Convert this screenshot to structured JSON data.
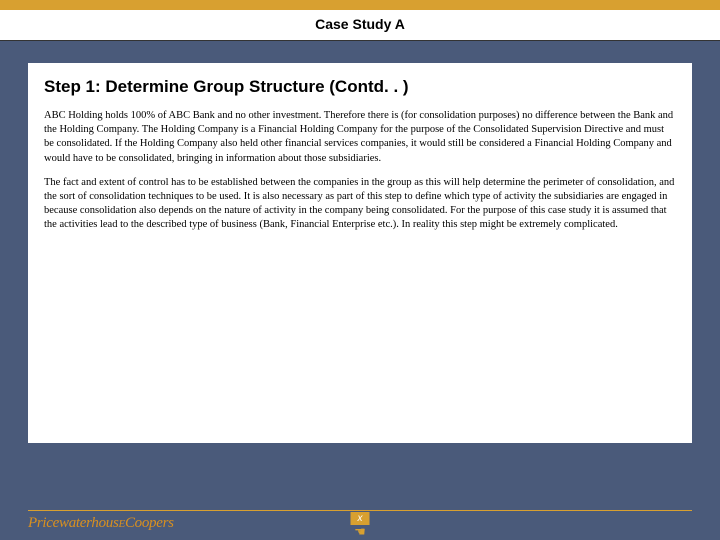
{
  "colors": {
    "slide_bg": "#4a5a7a",
    "accent": "#d8a030",
    "card_bg": "#ffffff",
    "text": "#000000",
    "logo": "#d89020"
  },
  "header": {
    "title": "Case Study A"
  },
  "content": {
    "step_heading": "Step 1: Determine Group Structure (Contd. . )",
    "paragraphs": [
      "ABC Holding holds 100% of ABC Bank and no other investment. Therefore there is (for consolidation purposes) no difference between the Bank and the Holding Company. The Holding Company is a Financial Holding Company for the purpose of the Consolidated Supervision Directive and must be consolidated. If the Holding Company also held other financial services companies, it would still be considered a Financial Holding Company and would have to be consolidated, bringing in information about those subsidiaries.",
      "The fact and extent of control has to be established between the companies in the group as this will help determine the perimeter of consolidation, and the sort of consolidation techniques to be used. It is also necessary as part of this step to define which type of activity the subsidiaries are engaged in because consolidation also depends on the nature of activity in the company being consolidated. For the purpose of this case study it is assumed that the activities lead to the described type of business (Bank, Financial Enterprise etc.). In reality this step might be extremely complicated."
    ]
  },
  "footer": {
    "logo_text": "PricewaterhouseCoopers",
    "page_marker": "x"
  }
}
